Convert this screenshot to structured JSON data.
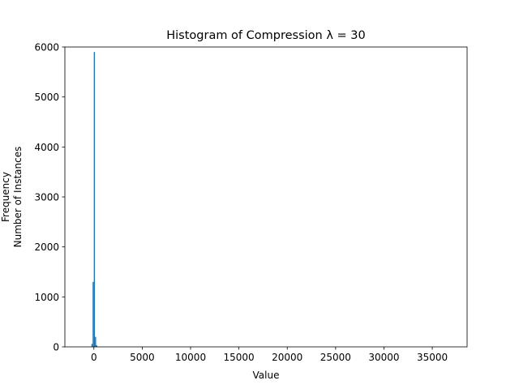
{
  "chart_data": {
    "type": "bar",
    "title": "Histogram of Compression λ = 30",
    "xlabel": "Value",
    "ylabel_lines": [
      "Frequency",
      "Number of Instances"
    ],
    "xlim": [
      -3000,
      38600
    ],
    "ylim": [
      0,
      6000
    ],
    "xticks": [
      0,
      5000,
      10000,
      15000,
      20000,
      25000,
      30000,
      35000
    ],
    "xtick_labels": [
      "0",
      "5000",
      "10000",
      "15000",
      "20000",
      "25000",
      "30000",
      "35000"
    ],
    "yticks": [
      0,
      1000,
      2000,
      3000,
      4000,
      5000,
      6000
    ],
    "ytick_labels": [
      "0",
      "1000",
      "2000",
      "3000",
      "4000",
      "5000",
      "6000"
    ],
    "bar_color": "#1f77b4",
    "bins": [
      {
        "x0": -250,
        "x1": -130,
        "count": 60
      },
      {
        "x0": -130,
        "x1": -10,
        "count": 1300
      },
      {
        "x0": -10,
        "x1": 110,
        "count": 5900
      },
      {
        "x0": 110,
        "x1": 230,
        "count": 200
      },
      {
        "x0": 230,
        "x1": 350,
        "count": 30
      }
    ]
  }
}
